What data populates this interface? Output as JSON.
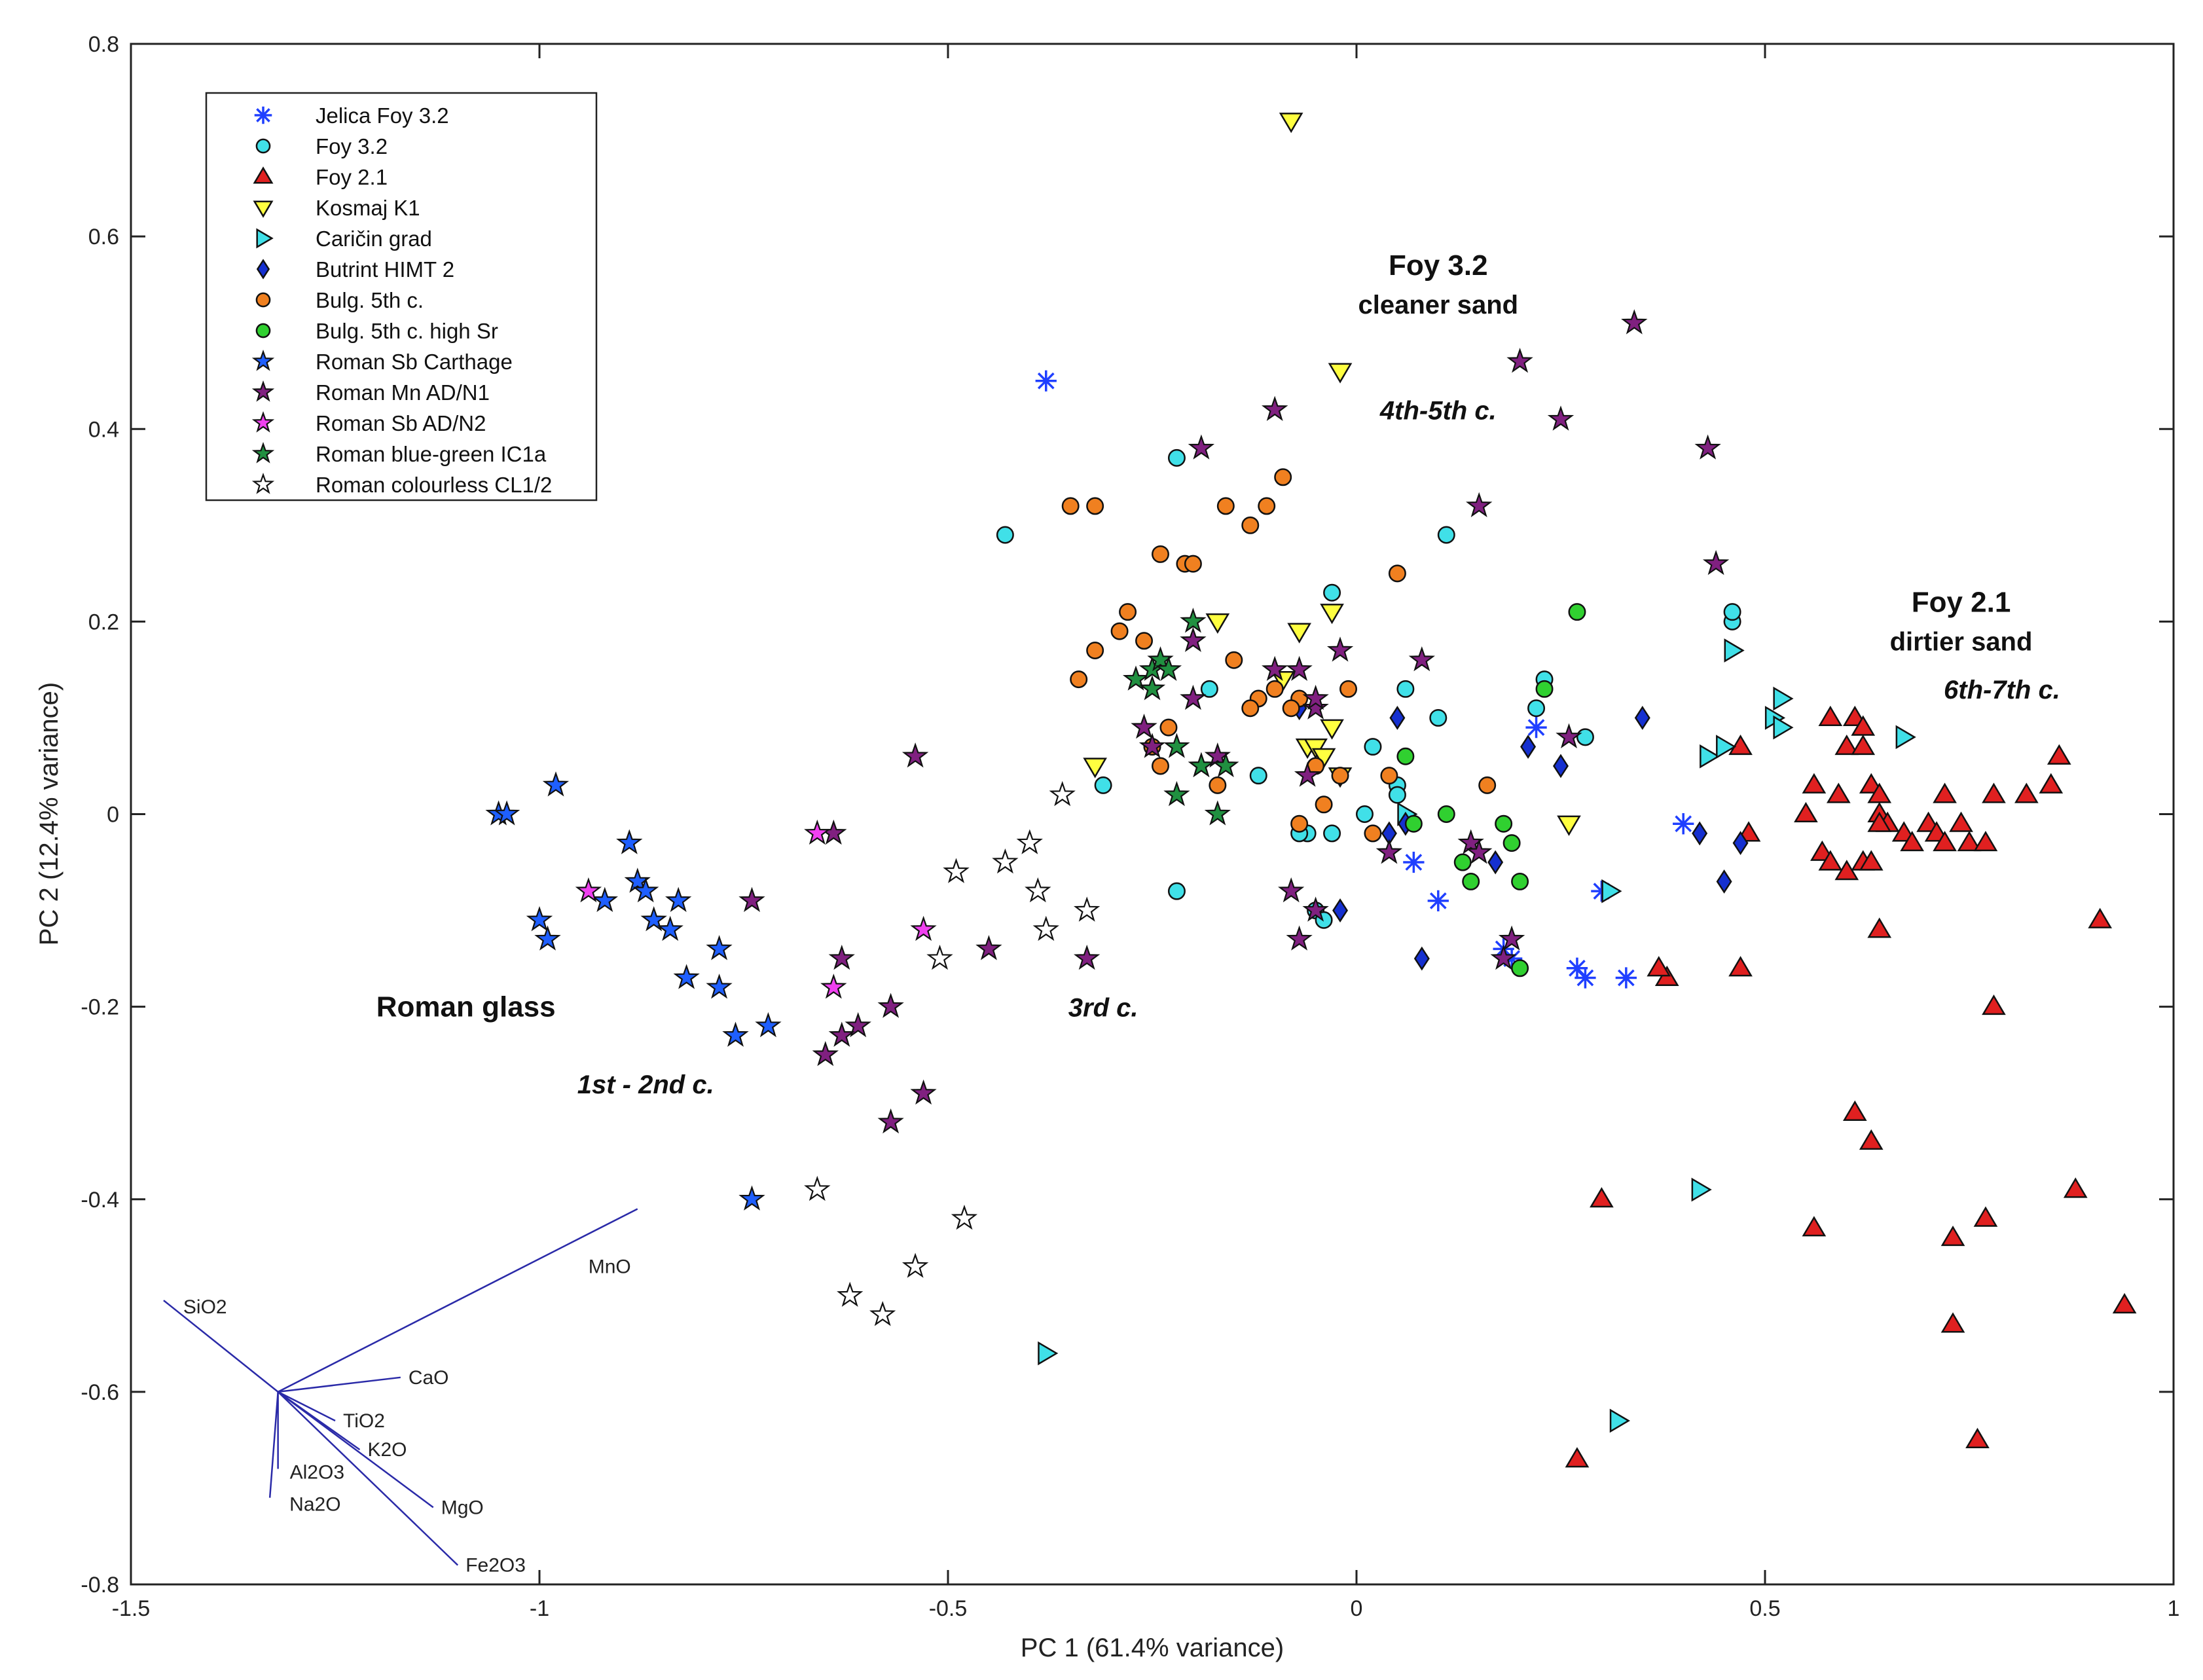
{
  "chart_data": {
    "type": "scatter",
    "title": "",
    "xlabel": "PC 1 (61.4% variance)",
    "ylabel": "PC 2 (12.4% variance)",
    "xlim": [
      -1.5,
      1
    ],
    "ylim": [
      -0.8,
      0.8
    ],
    "xticks": [
      -1.5,
      -1,
      -0.5,
      0,
      0.5,
      1
    ],
    "yticks": [
      -0.8,
      -0.6,
      -0.4,
      -0.2,
      0,
      0.2,
      0.4,
      0.6,
      0.8
    ],
    "xtick_labels": [
      "-1.5",
      "-1",
      "-0.5",
      "0",
      "0.5",
      "1"
    ],
    "ytick_labels": [
      "-0.8",
      "-0.6",
      "-0.4",
      "-0.2",
      "0",
      "0.2",
      "0.4",
      "0.6",
      "0.8"
    ],
    "grid": false,
    "legend_position": "top-left",
    "series": [
      {
        "name": "Jelica Foy 3.2",
        "marker": "asterisk",
        "color": "#1f3fff",
        "x": [
          -0.38,
          0.4,
          0.22,
          0.07,
          0.1,
          0.18,
          0.19,
          0.27,
          0.28,
          0.33,
          0.3
        ],
        "y": [
          0.45,
          -0.01,
          0.09,
          -0.05,
          -0.09,
          -0.14,
          -0.15,
          -0.16,
          -0.17,
          -0.17,
          -0.08
        ]
      },
      {
        "name": "Foy 3.2",
        "marker": "circle",
        "color": "#40e0e8",
        "x": [
          -0.43,
          -0.22,
          -0.31,
          -0.22,
          -0.18,
          -0.12,
          -0.06,
          -0.05,
          -0.03,
          -0.03,
          0.02,
          0.05,
          0.06,
          0.1,
          0.11,
          0.22,
          0.23,
          0.28,
          0.46,
          0.46,
          0.05,
          -0.07,
          0.01,
          -0.04
        ],
        "y": [
          0.29,
          0.37,
          0.03,
          -0.08,
          0.13,
          0.04,
          -0.02,
          -0.1,
          0.23,
          -0.02,
          0.07,
          0.03,
          0.13,
          0.1,
          0.29,
          0.11,
          0.14,
          0.08,
          0.2,
          0.21,
          0.02,
          -0.02,
          0.0,
          -0.11
        ]
      },
      {
        "name": "Foy 2.1",
        "marker": "triangle-up",
        "color": "#e02020",
        "x": [
          0.38,
          0.37,
          0.47,
          0.48,
          0.47,
          0.55,
          0.56,
          0.58,
          0.57,
          0.6,
          0.61,
          0.62,
          0.63,
          0.64,
          0.65,
          0.62,
          0.6,
          0.63,
          0.67,
          0.7,
          0.72,
          0.75,
          0.77,
          0.78,
          0.82,
          0.86,
          0.85,
          0.91,
          0.78,
          0.64,
          0.58,
          0.59,
          0.61,
          0.63,
          0.68,
          0.73,
          0.73,
          0.76,
          0.77,
          0.88,
          0.94,
          0.3,
          0.27,
          0.56,
          0.62,
          0.64,
          0.64,
          0.71,
          0.72,
          0.74
        ],
        "y": [
          -0.17,
          -0.16,
          0.07,
          -0.02,
          -0.16,
          0.0,
          0.03,
          0.1,
          -0.04,
          0.07,
          0.1,
          0.09,
          0.03,
          0.0,
          -0.01,
          -0.05,
          -0.06,
          -0.05,
          -0.02,
          -0.01,
          0.02,
          -0.03,
          -0.03,
          -0.2,
          0.02,
          0.06,
          0.03,
          -0.11,
          0.02,
          -0.12,
          -0.05,
          0.02,
          -0.31,
          -0.34,
          -0.03,
          -0.44,
          -0.53,
          -0.65,
          -0.42,
          -0.39,
          -0.51,
          -0.4,
          -0.67,
          -0.43,
          0.07,
          -0.01,
          0.02,
          -0.02,
          -0.03,
          -0.01
        ]
      },
      {
        "name": "Kosmaj K1",
        "marker": "triangle-down",
        "color": "#ffff40",
        "x": [
          -0.08,
          -0.02,
          -0.32,
          -0.17,
          -0.03,
          -0.07,
          -0.06,
          -0.05,
          -0.04,
          -0.03,
          -0.02,
          -0.09,
          0.26
        ],
        "y": [
          0.72,
          0.46,
          0.05,
          0.2,
          0.21,
          0.19,
          0.07,
          0.07,
          0.06,
          0.09,
          0.04,
          0.14,
          -0.01
        ]
      },
      {
        "name": "Caričin grad",
        "marker": "triangle-right",
        "color": "#40e0e8",
        "x": [
          -0.38,
          0.32,
          0.42,
          0.46,
          0.43,
          0.45,
          0.52,
          0.51,
          0.52,
          0.67,
          0.06,
          0.31
        ],
        "y": [
          -0.56,
          -0.63,
          -0.39,
          0.17,
          0.06,
          0.07,
          0.12,
          0.1,
          0.09,
          0.08,
          0.0,
          -0.08
        ]
      },
      {
        "name": "Butrint HIMT 2",
        "marker": "diamond",
        "color": "#1530d0",
        "x": [
          0.35,
          0.21,
          0.25,
          0.04,
          0.06,
          0.17,
          -0.02,
          -0.07,
          0.08,
          0.42,
          0.45,
          0.47,
          0.05
        ],
        "y": [
          0.1,
          0.07,
          0.05,
          -0.02,
          -0.01,
          -0.05,
          -0.1,
          0.11,
          -0.15,
          -0.02,
          -0.07,
          -0.03,
          0.1
        ]
      },
      {
        "name": "Bulg. 5th c.",
        "marker": "circle",
        "color": "#f08020",
        "x": [
          -0.35,
          -0.32,
          -0.24,
          -0.21,
          -0.2,
          -0.16,
          -0.13,
          -0.11,
          -0.09,
          -0.07,
          -0.34,
          -0.32,
          -0.29,
          -0.28,
          -0.26,
          -0.25,
          -0.23,
          -0.24,
          -0.17,
          -0.15,
          -0.12,
          -0.08,
          -0.07,
          -0.04,
          -0.01,
          0.02,
          0.04,
          0.05,
          0.16,
          -0.05,
          -0.02,
          -0.1,
          -0.13
        ],
        "y": [
          0.32,
          0.32,
          0.27,
          0.26,
          0.26,
          0.32,
          0.3,
          0.32,
          0.35,
          0.12,
          0.14,
          0.17,
          0.19,
          0.21,
          0.18,
          0.07,
          0.09,
          0.05,
          0.03,
          0.16,
          0.12,
          0.11,
          -0.01,
          0.01,
          0.13,
          -0.02,
          0.04,
          0.25,
          0.03,
          0.05,
          0.04,
          0.13,
          0.11
        ]
      },
      {
        "name": "Bulg. 5th c. high Sr",
        "marker": "circle",
        "color": "#30d030",
        "x": [
          0.27,
          0.23,
          0.07,
          0.11,
          0.13,
          0.14,
          0.18,
          0.19,
          0.2,
          0.2,
          0.06
        ],
        "y": [
          0.21,
          0.13,
          -0.01,
          0.0,
          -0.05,
          -0.07,
          -0.01,
          -0.03,
          -0.07,
          -0.16,
          0.06
        ]
      },
      {
        "name": "Roman Sb Carthage",
        "marker": "star",
        "color": "#1f5fff",
        "x": [
          -1.05,
          -1.04,
          -0.98,
          -1.0,
          -0.99,
          -0.92,
          -0.89,
          -0.88,
          -0.87,
          -0.86,
          -0.84,
          -0.83,
          -0.82,
          -0.78,
          -0.78,
          -0.76,
          -0.72,
          -0.74
        ],
        "y": [
          0.0,
          0.0,
          0.03,
          -0.11,
          -0.13,
          -0.09,
          -0.03,
          -0.07,
          -0.08,
          -0.11,
          -0.12,
          -0.09,
          -0.17,
          -0.14,
          -0.18,
          -0.23,
          -0.22,
          -0.4
        ]
      },
      {
        "name": "Roman Mn AD/N1",
        "marker": "star",
        "color": "#802080",
        "x": [
          0.34,
          0.2,
          0.25,
          0.43,
          0.44,
          0.15,
          -0.19,
          -0.1,
          -0.2,
          -0.2,
          -0.17,
          -0.26,
          -0.25,
          -0.1,
          -0.07,
          -0.06,
          -0.05,
          -0.02,
          0.08,
          -0.54,
          -0.64,
          -0.74,
          -0.63,
          -0.61,
          -0.63,
          -0.57,
          -0.53,
          -0.57,
          -0.65,
          -0.45,
          -0.33,
          -0.08,
          -0.07,
          -0.05,
          -0.05,
          0.04,
          0.14,
          0.15,
          0.19,
          0.18,
          0.26
        ],
        "y": [
          0.51,
          0.47,
          0.41,
          0.38,
          0.26,
          0.32,
          0.38,
          0.42,
          0.18,
          0.12,
          0.06,
          0.09,
          0.07,
          0.15,
          0.15,
          0.04,
          0.11,
          0.17,
          0.16,
          0.06,
          -0.02,
          -0.09,
          -0.15,
          -0.22,
          -0.23,
          -0.2,
          -0.29,
          -0.32,
          -0.25,
          -0.14,
          -0.15,
          -0.08,
          -0.13,
          -0.1,
          0.12,
          -0.04,
          -0.03,
          -0.04,
          -0.13,
          -0.15,
          0.08
        ]
      },
      {
        "name": "Roman Sb AD/N2",
        "marker": "star",
        "color": "#f040f0",
        "x": [
          -0.94,
          -0.66,
          -0.64,
          -0.53
        ],
        "y": [
          -0.08,
          -0.02,
          -0.18,
          -0.12
        ]
      },
      {
        "name": "Roman blue-green IC1a",
        "marker": "star",
        "color": "#209040",
        "x": [
          -0.27,
          -0.25,
          -0.24,
          -0.23,
          -0.22,
          -0.25,
          -0.2,
          -0.19,
          -0.16,
          -0.22,
          -0.19,
          -0.17
        ],
        "y": [
          0.14,
          0.15,
          0.16,
          0.15,
          0.07,
          0.13,
          0.2,
          0.05,
          0.05,
          0.02,
          0.05,
          0.0
        ]
      },
      {
        "name": "Roman colourless CL1/2",
        "marker": "star",
        "color": "#ffffff",
        "x": [
          -0.36,
          -0.49,
          -0.43,
          -0.4,
          -0.39,
          -0.38,
          -0.33,
          -0.51,
          -0.66,
          -0.48,
          -0.54,
          -0.62,
          -0.58
        ],
        "y": [
          0.02,
          -0.06,
          -0.05,
          -0.03,
          -0.08,
          -0.12,
          -0.1,
          -0.15,
          -0.39,
          -0.42,
          -0.47,
          -0.5,
          -0.52
        ]
      }
    ],
    "loadings": {
      "origin": [
        -1.32,
        -0.6
      ],
      "vectors": [
        {
          "name": "SiO2",
          "dx": -0.14,
          "dy": 0.095
        },
        {
          "name": "MnO",
          "dx": 0.44,
          "dy": 0.19
        },
        {
          "name": "CaO",
          "dx": 0.15,
          "dy": 0.015
        },
        {
          "name": "TiO2",
          "dx": 0.07,
          "dy": -0.03
        },
        {
          "name": "K2O",
          "dx": 0.1,
          "dy": -0.06
        },
        {
          "name": "MgO",
          "dx": 0.19,
          "dy": -0.12
        },
        {
          "name": "Al2O3",
          "dx": 0.0,
          "dy": -0.08
        },
        {
          "name": "Na2O",
          "dx": -0.01,
          "dy": -0.11
        },
        {
          "name": "Fe2O3",
          "dx": 0.22,
          "dy": -0.18
        }
      ]
    },
    "annotations": [
      {
        "text": "Foy 3.2",
        "x": 0.1,
        "y": 0.56,
        "style": "bold-large"
      },
      {
        "text": "cleaner sand",
        "x": 0.1,
        "y": 0.52,
        "style": "bold"
      },
      {
        "text": "4th-5th c.",
        "x": 0.1,
        "y": 0.41,
        "style": "bold-italic"
      },
      {
        "text": "Foy 2.1",
        "x": 0.74,
        "y": 0.21,
        "style": "bold-large"
      },
      {
        "text": "dirtier sand",
        "x": 0.74,
        "y": 0.17,
        "style": "bold"
      },
      {
        "text": "6th-7th c.",
        "x": 0.79,
        "y": 0.12,
        "style": "bold-italic"
      },
      {
        "text": "Roman glass",
        "x": -1.09,
        "y": -0.21,
        "style": "bold-large"
      },
      {
        "text": "1st - 2nd c.",
        "x": -0.87,
        "y": -0.29,
        "style": "bold-italic"
      },
      {
        "text": "3rd c.",
        "x": -0.31,
        "y": -0.21,
        "style": "bold-italic"
      }
    ]
  }
}
